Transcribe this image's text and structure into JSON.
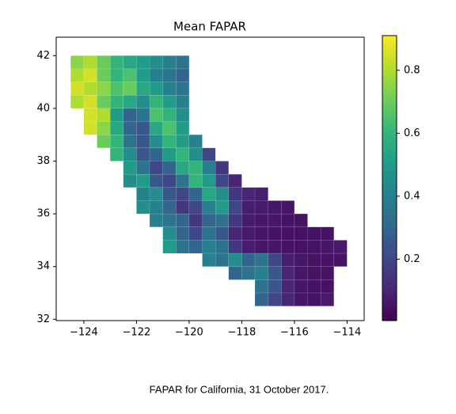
{
  "chart_data": {
    "type": "heatmap",
    "title": "Mean FAPAR",
    "caption": "FAPAR for California, 31 October 2017.",
    "colormap": "viridis",
    "x": [
      -124.25,
      -123.75,
      -123.25,
      -122.75,
      -122.25,
      -121.75,
      -121.25,
      -120.75,
      -120.25,
      -119.75,
      -119.25,
      -118.75,
      -118.25,
      -117.75,
      -117.25,
      -116.75,
      -116.25,
      -115.75,
      -115.25,
      -114.75,
      -114.25
    ],
    "y": [
      41.75,
      41.25,
      40.75,
      40.25,
      39.75,
      39.25,
      38.75,
      38.25,
      37.75,
      37.25,
      36.75,
      36.25,
      35.75,
      35.25,
      34.75,
      34.25,
      33.75,
      33.25,
      32.75
    ],
    "values": [
      [
        0.75,
        0.8,
        0.7,
        0.6,
        0.55,
        0.5,
        0.45,
        0.4,
        0.35,
        null,
        null,
        null,
        null,
        null,
        null,
        null,
        null,
        null,
        null,
        null,
        null
      ],
      [
        0.8,
        0.85,
        0.7,
        0.6,
        0.65,
        0.5,
        0.4,
        0.35,
        0.3,
        null,
        null,
        null,
        null,
        null,
        null,
        null,
        null,
        null,
        null,
        null,
        null
      ],
      [
        0.85,
        0.8,
        0.75,
        0.65,
        0.7,
        0.55,
        0.5,
        0.4,
        0.35,
        null,
        null,
        null,
        null,
        null,
        null,
        null,
        null,
        null,
        null,
        null,
        null
      ],
      [
        0.8,
        0.85,
        0.7,
        0.6,
        0.55,
        0.45,
        0.6,
        0.5,
        0.4,
        null,
        null,
        null,
        null,
        null,
        null,
        null,
        null,
        null,
        null,
        null,
        null
      ],
      [
        null,
        0.85,
        0.8,
        0.5,
        0.3,
        0.35,
        0.65,
        0.6,
        0.45,
        null,
        null,
        null,
        null,
        null,
        null,
        null,
        null,
        null,
        null,
        null,
        null
      ],
      [
        null,
        0.85,
        0.75,
        0.55,
        0.3,
        0.25,
        0.55,
        0.65,
        0.5,
        null,
        null,
        null,
        null,
        null,
        null,
        null,
        null,
        null,
        null,
        null,
        null
      ],
      [
        null,
        null,
        0.7,
        0.6,
        0.35,
        0.25,
        0.45,
        0.6,
        0.5,
        0.4,
        null,
        null,
        null,
        null,
        null,
        null,
        null,
        null,
        null,
        null,
        null
      ],
      [
        null,
        null,
        null,
        0.6,
        0.45,
        0.25,
        0.3,
        0.5,
        0.6,
        0.45,
        0.2,
        null,
        null,
        null,
        null,
        null,
        null,
        null,
        null,
        null,
        null
      ],
      [
        null,
        null,
        null,
        null,
        0.5,
        0.35,
        0.2,
        0.3,
        0.55,
        0.6,
        0.4,
        0.15,
        null,
        null,
        null,
        null,
        null,
        null,
        null,
        null,
        null
      ],
      [
        null,
        null,
        null,
        null,
        0.45,
        0.5,
        0.25,
        0.2,
        0.35,
        0.6,
        0.5,
        0.2,
        0.1,
        null,
        null,
        null,
        null,
        null,
        null,
        null,
        null
      ],
      [
        null,
        null,
        null,
        null,
        null,
        0.4,
        0.45,
        0.25,
        0.2,
        0.3,
        0.55,
        0.45,
        0.15,
        0.1,
        0.08,
        null,
        null,
        null,
        null,
        null,
        null
      ],
      [
        null,
        null,
        null,
        null,
        null,
        0.45,
        0.4,
        0.3,
        0.15,
        0.2,
        0.4,
        0.5,
        0.2,
        0.08,
        0.07,
        0.06,
        0.06,
        null,
        null,
        null,
        null
      ],
      [
        null,
        null,
        null,
        null,
        null,
        null,
        0.4,
        0.35,
        0.3,
        0.15,
        0.3,
        0.35,
        0.15,
        0.07,
        0.06,
        0.06,
        0.05,
        0.05,
        null,
        null,
        null
      ],
      [
        null,
        null,
        null,
        null,
        null,
        null,
        null,
        0.45,
        0.3,
        0.2,
        0.35,
        0.25,
        0.1,
        0.07,
        0.06,
        0.05,
        0.05,
        0.05,
        0.05,
        0.05,
        null
      ],
      [
        null,
        null,
        null,
        null,
        null,
        null,
        null,
        0.5,
        0.35,
        0.3,
        0.4,
        0.35,
        0.15,
        0.08,
        0.06,
        0.06,
        0.05,
        0.05,
        0.05,
        0.06,
        0.07
      ],
      [
        null,
        null,
        null,
        null,
        null,
        null,
        null,
        null,
        null,
        null,
        0.4,
        0.35,
        0.45,
        0.3,
        0.35,
        0.2,
        0.08,
        0.06,
        0.05,
        0.05,
        0.05
      ],
      [
        null,
        null,
        null,
        null,
        null,
        null,
        null,
        null,
        null,
        null,
        null,
        null,
        0.3,
        0.35,
        0.4,
        0.25,
        0.1,
        0.06,
        0.05,
        0.05,
        null
      ],
      [
        null,
        null,
        null,
        null,
        null,
        null,
        null,
        null,
        null,
        null,
        null,
        null,
        null,
        null,
        0.35,
        0.25,
        0.1,
        0.06,
        0.05,
        0.05,
        null
      ],
      [
        null,
        null,
        null,
        null,
        null,
        null,
        null,
        null,
        null,
        null,
        null,
        null,
        null,
        null,
        0.3,
        0.2,
        0.1,
        0.06,
        0.05,
        0.07,
        null
      ]
    ],
    "xlim": [
      -125.05,
      -113.35
    ],
    "ylim": [
      31.95,
      42.7
    ],
    "xticks": [
      {
        "value": -124,
        "label": "−124"
      },
      {
        "value": -122,
        "label": "−122"
      },
      {
        "value": -120,
        "label": "−120"
      },
      {
        "value": -118,
        "label": "−118"
      },
      {
        "value": -116,
        "label": "−116"
      },
      {
        "value": -114,
        "label": "−114"
      }
    ],
    "yticks": [
      32,
      34,
      36,
      38,
      40,
      42
    ],
    "clim": [
      0.005,
      0.91
    ],
    "cticks": [
      0.2,
      0.4,
      0.6,
      0.8
    ]
  }
}
